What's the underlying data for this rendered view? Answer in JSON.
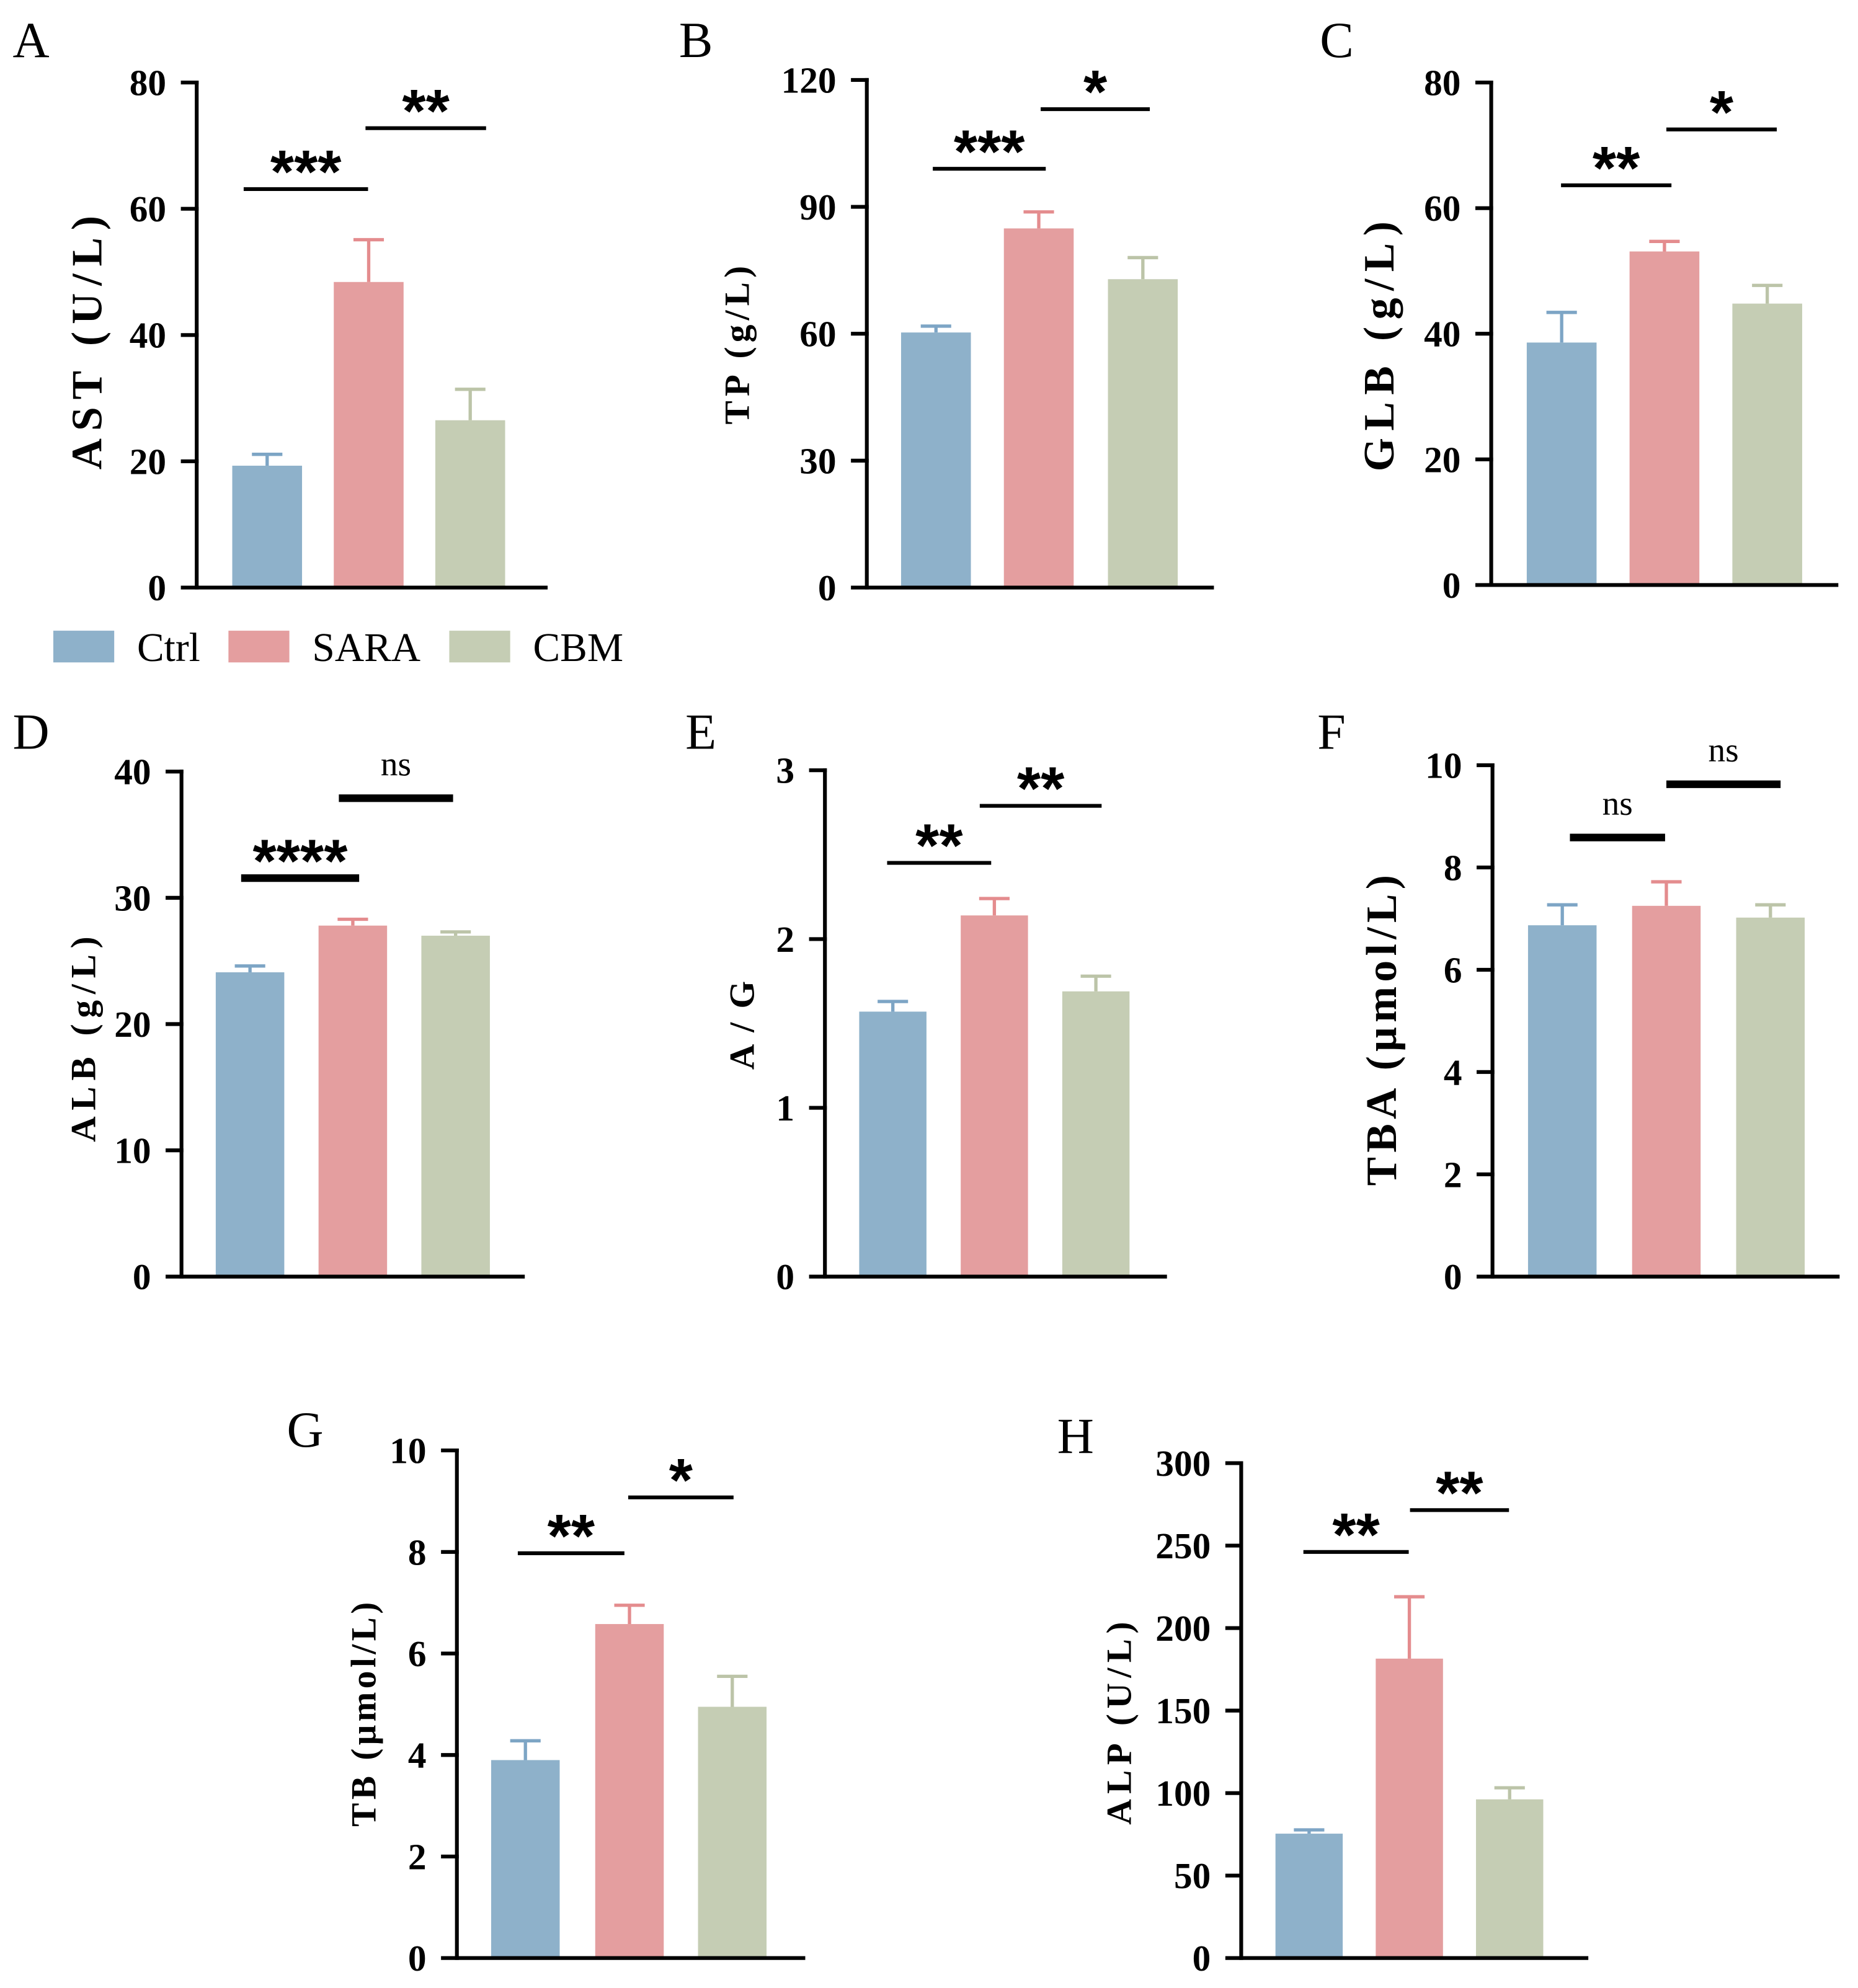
{
  "legend": {
    "items": [
      {
        "label": "Ctrl",
        "color": "#8EB1CA",
        "error_color": "#7DA5C5"
      },
      {
        "label": "SARA",
        "color": "#E49E9F",
        "error_color": "#E48C8E"
      },
      {
        "label": "CBM",
        "color": "#C5CDB4",
        "error_color": "#BCC4A8"
      }
    ]
  },
  "chart_data": [
    {
      "panel": "A",
      "type": "bar",
      "categories": [
        "Ctrl",
        "SARA",
        "CBM"
      ],
      "values": [
        19.3,
        48.4,
        26.5
      ],
      "error": [
        1.8,
        6.7,
        4.9
      ],
      "ylabel": "AST (U/L)",
      "ylim": [
        0,
        80
      ],
      "yticks": [
        0,
        20,
        40,
        60,
        80
      ],
      "significance": [
        {
          "groups": [
            0,
            1
          ],
          "label": "***"
        },
        {
          "groups": [
            1,
            2
          ],
          "label": "**"
        }
      ]
    },
    {
      "panel": "B",
      "type": "bar",
      "categories": [
        "Ctrl",
        "SARA",
        "CBM"
      ],
      "values": [
        60.3,
        84.9,
        72.9
      ],
      "error": [
        1.5,
        3.9,
        5.1
      ],
      "ylabel": "TP (g/L)",
      "ylim": [
        0,
        120
      ],
      "yticks": [
        0,
        30,
        60,
        90,
        120
      ],
      "significance": [
        {
          "groups": [
            0,
            1
          ],
          "label": "***"
        },
        {
          "groups": [
            1,
            2
          ],
          "label": "*"
        }
      ]
    },
    {
      "panel": "C",
      "type": "bar",
      "categories": [
        "Ctrl",
        "SARA",
        "CBM"
      ],
      "values": [
        38.6,
        53.1,
        44.8
      ],
      "error": [
        4.8,
        1.6,
        2.9
      ],
      "ylabel": "GLB (g/L)",
      "ylim": [
        0,
        80
      ],
      "yticks": [
        0,
        20,
        40,
        60,
        80
      ],
      "significance": [
        {
          "groups": [
            0,
            1
          ],
          "label": "**"
        },
        {
          "groups": [
            1,
            2
          ],
          "label": "*"
        }
      ]
    },
    {
      "panel": "D",
      "type": "bar",
      "categories": [
        "Ctrl",
        "SARA",
        "CBM"
      ],
      "values": [
        24.1,
        27.8,
        27.0
      ],
      "error": [
        0.5,
        0.5,
        0.3
      ],
      "ylabel": "ALB (g/L)",
      "ylim": [
        0,
        40
      ],
      "yticks": [
        0,
        10,
        20,
        30,
        40
      ],
      "significance": [
        {
          "groups": [
            0,
            1
          ],
          "label": "****"
        },
        {
          "groups": [
            1,
            2
          ],
          "label": "ns"
        }
      ]
    },
    {
      "panel": "E",
      "type": "bar",
      "categories": [
        "Ctrl",
        "SARA",
        "CBM"
      ],
      "values": [
        1.57,
        2.14,
        1.69
      ],
      "error": [
        0.06,
        0.1,
        0.09
      ],
      "ylabel": "A / G",
      "ylim": [
        0,
        3
      ],
      "yticks": [
        0,
        1,
        2,
        3
      ],
      "significance": [
        {
          "groups": [
            0,
            1
          ],
          "label": "**"
        },
        {
          "groups": [
            1,
            2
          ],
          "label": "**"
        }
      ]
    },
    {
      "panel": "F",
      "type": "bar",
      "categories": [
        "Ctrl",
        "SARA",
        "CBM"
      ],
      "values": [
        6.87,
        7.25,
        7.02
      ],
      "error": [
        0.4,
        0.47,
        0.25
      ],
      "ylabel": "TBA (μmol/L)",
      "ylim": [
        0,
        10
      ],
      "yticks": [
        0,
        2,
        4,
        6,
        8,
        10
      ],
      "significance": [
        {
          "groups": [
            0,
            1
          ],
          "label": "ns"
        },
        {
          "groups": [
            1,
            2
          ],
          "label": "ns"
        }
      ]
    },
    {
      "panel": "G",
      "type": "bar",
      "categories": [
        "Ctrl",
        "SARA",
        "CBM"
      ],
      "values": [
        3.9,
        6.58,
        4.95
      ],
      "error": [
        0.38,
        0.37,
        0.6
      ],
      "ylabel": "TB (μmol/L)",
      "ylim": [
        0,
        10
      ],
      "yticks": [
        0,
        2,
        4,
        6,
        8,
        10
      ],
      "significance": [
        {
          "groups": [
            0,
            1
          ],
          "label": "**"
        },
        {
          "groups": [
            1,
            2
          ],
          "label": "*"
        }
      ]
    },
    {
      "panel": "H",
      "type": "bar",
      "categories": [
        "Ctrl",
        "SARA",
        "CBM"
      ],
      "values": [
        75.4,
        181.5,
        96.2
      ],
      "error": [
        2.3,
        37.5,
        7.0
      ],
      "ylabel": "ALP (U/L)",
      "ylim": [
        0,
        300
      ],
      "yticks": [
        0,
        50,
        100,
        150,
        200,
        250,
        300
      ],
      "significance": [
        {
          "groups": [
            0,
            1
          ],
          "label": "**"
        },
        {
          "groups": [
            1,
            2
          ],
          "label": "**"
        }
      ]
    }
  ]
}
